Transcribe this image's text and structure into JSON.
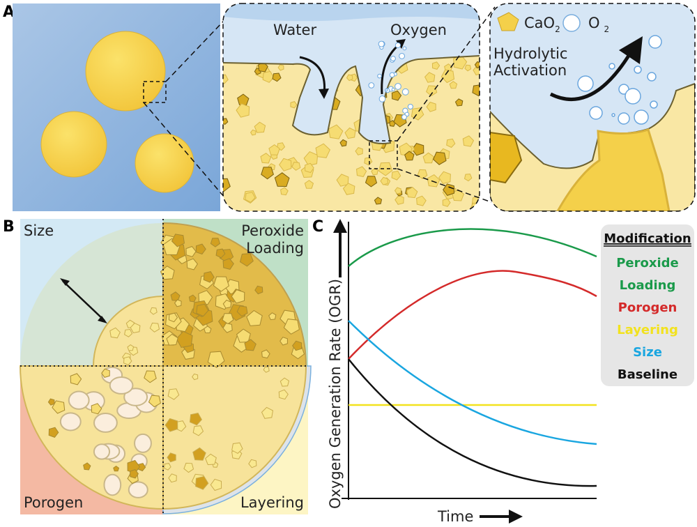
{
  "panel_a": {
    "label": "A",
    "water": "Water",
    "oxygen": "Oxygen",
    "legend_cao2": {
      "text": "CaO",
      "sub": "2"
    },
    "legend_o2": {
      "text": "O",
      "sub": "2"
    },
    "activation": [
      "Hydrolytic",
      "Activation"
    ]
  },
  "panel_b": {
    "label": "B",
    "size": "Size",
    "peroxide_loading": [
      "Peroxide",
      "Loading"
    ],
    "porogen": "Porogen",
    "layering": "Layering"
  },
  "panel_c": {
    "label": "C",
    "y_axis": "Oxygen Generation Rate (OGR)",
    "x_axis": "Time",
    "legend": {
      "title": "Modification",
      "items": [
        {
          "text": [
            "Peroxide",
            "Loading"
          ],
          "color": "#1a9a4a"
        },
        {
          "text": [
            "Porogen"
          ],
          "color": "#d42a2a"
        },
        {
          "text": [
            "Layering"
          ],
          "color": "#f2e21e"
        },
        {
          "text": [
            "Size"
          ],
          "color": "#1aa6e0"
        },
        {
          "text": [
            "Baseline"
          ],
          "color": "#111111"
        }
      ]
    }
  }
}
